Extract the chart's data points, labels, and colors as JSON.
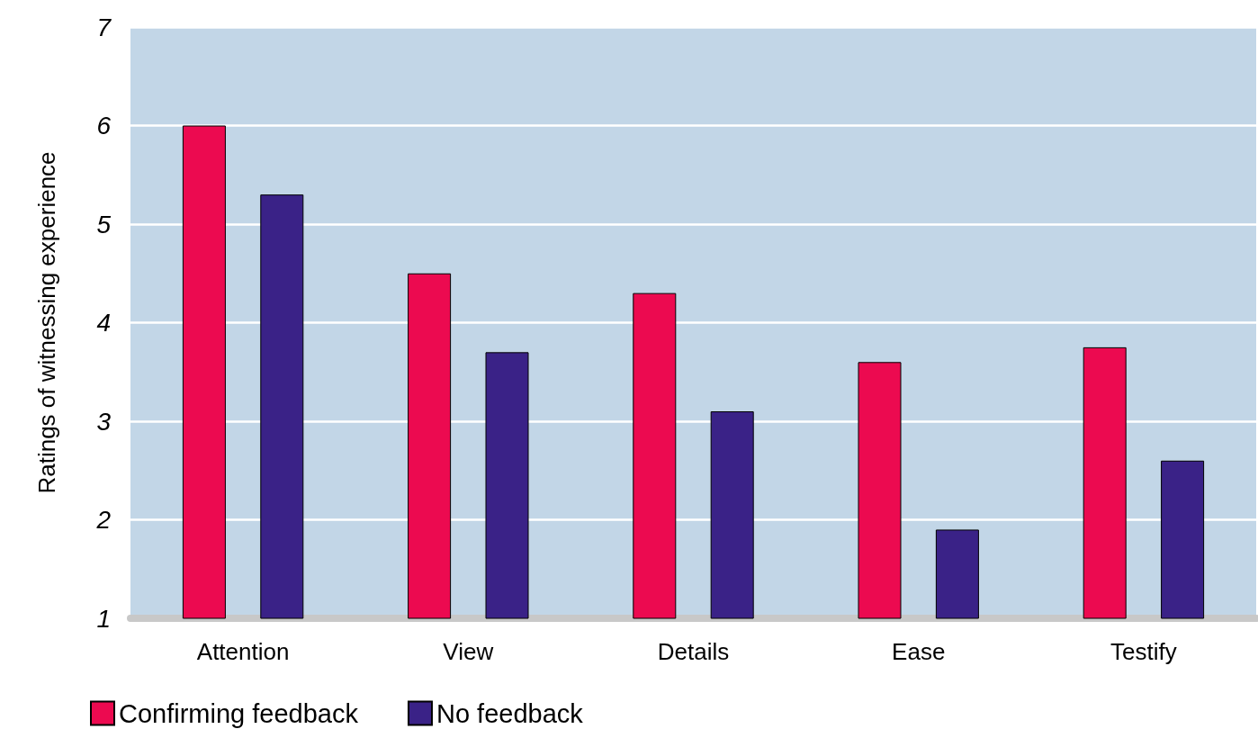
{
  "chart_data": {
    "type": "bar",
    "ylabel": "Ratings of witnessing experience",
    "categories": [
      "Attention",
      "View",
      "Details",
      "Ease",
      "Testify"
    ],
    "series": [
      {
        "name": "Confirming feedback",
        "color": "#ec0a50",
        "values": [
          6.0,
          4.5,
          4.3,
          3.6,
          3.75
        ]
      },
      {
        "name": "No feedback",
        "color": "#3a2287",
        "values": [
          5.3,
          3.7,
          3.1,
          1.9,
          2.6
        ]
      }
    ],
    "ylim": [
      1,
      7
    ],
    "yticks": [
      1,
      2,
      3,
      4,
      5,
      6,
      7
    ],
    "grid": "y",
    "legend": "bottom left"
  }
}
